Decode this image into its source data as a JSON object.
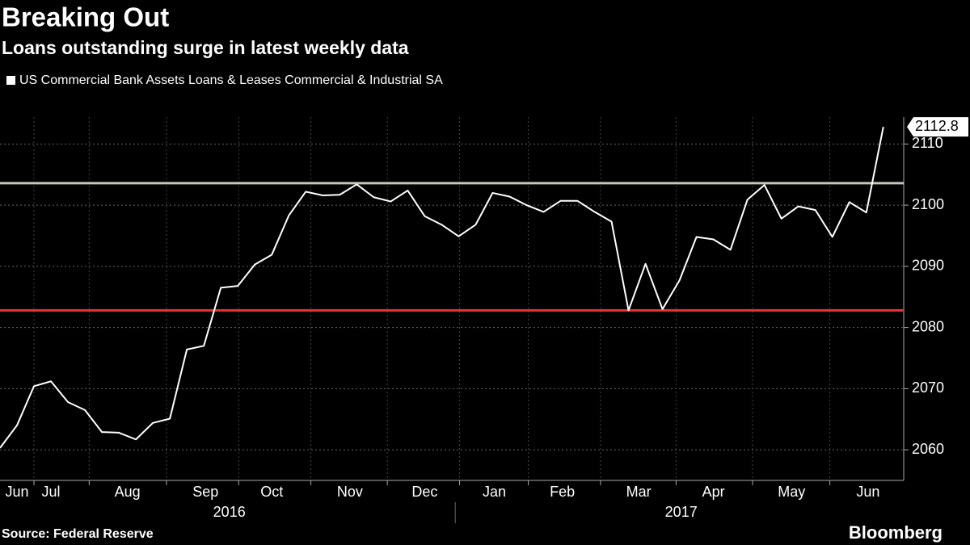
{
  "chart_data": {
    "type": "line",
    "title": "Breaking Out",
    "subtitle": "Loans outstanding surge in latest weekly data",
    "source": "Source: Federal Reserve",
    "brand": "Bloomberg",
    "series": [
      {
        "name": "US Commercial Bank Assets Loans & Leases Commercial & Industrial SA",
        "color": "#ffffff",
        "values": [
          2060.3,
          2064,
          2070.4,
          2071.2,
          2067.8,
          2066.5,
          2062.9,
          2062.8,
          2061.7,
          2064.4,
          2065.1,
          2076.4,
          2077,
          2086.5,
          2086.8,
          2090.3,
          2091.9,
          2098.3,
          2102.2,
          2101.6,
          2101.7,
          2103.4,
          2101.3,
          2100.6,
          2102.4,
          2098.2,
          2096.8,
          2094.9,
          2096.8,
          2102,
          2101.4,
          2100,
          2098.9,
          2100.7,
          2100.7,
          2098.9,
          2097.3,
          2082.8,
          2090.4,
          2083,
          2087.7,
          2094.8,
          2094.4,
          2092.7,
          2100.9,
          2103.3,
          2097.8,
          2099.8,
          2099.2,
          2094.8,
          2100.5,
          2098.8,
          2112.8
        ]
      }
    ],
    "reference_lines": [
      {
        "value": 2103.6,
        "color": "#c8c8b4"
      },
      {
        "value": 2082.8,
        "color": "#e8323c"
      }
    ],
    "xlim": [
      0,
      53.2
    ],
    "xticks": [
      {
        "value": 1,
        "label": "Jun"
      },
      {
        "value": 3,
        "label": "Jul"
      },
      {
        "value": 7.5,
        "label": "Aug"
      },
      {
        "value": 12.1,
        "label": "Sep"
      },
      {
        "value": 16,
        "label": "Oct"
      },
      {
        "value": 20.6,
        "label": "Nov"
      },
      {
        "value": 25,
        "label": "Dec"
      },
      {
        "value": 29.1,
        "label": "Jan"
      },
      {
        "value": 33.1,
        "label": "Feb"
      },
      {
        "value": 37.6,
        "label": "Mar"
      },
      {
        "value": 42,
        "label": "Apr"
      },
      {
        "value": 46.6,
        "label": "May"
      },
      {
        "value": 51.1,
        "label": "Jun"
      }
    ],
    "years": [
      {
        "value": 13.5,
        "label": "2016"
      },
      {
        "value": 40.1,
        "label": "2017"
      }
    ],
    "ylim": [
      2055,
      2114.4
    ],
    "yticks": [
      2060,
      2070,
      2080,
      2090,
      2100,
      2110
    ],
    "grid": true
  }
}
